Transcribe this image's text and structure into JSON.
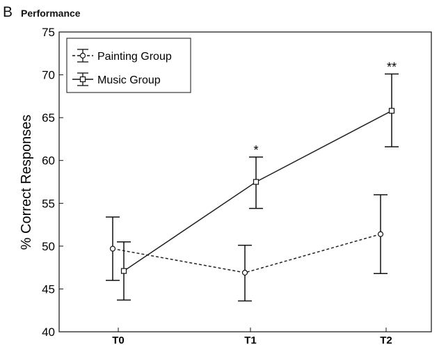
{
  "panel_letter": "B",
  "panel_title": "Performance",
  "chart_data": {
    "type": "line",
    "title": "",
    "xlabel": "",
    "ylabel": "% Correct Responses",
    "categories": [
      "T0",
      "T1",
      "T2"
    ],
    "ylim": [
      40,
      75
    ],
    "yticks": [
      40,
      45,
      50,
      55,
      60,
      65,
      70,
      75
    ],
    "grid": false,
    "legend_position": "top-left",
    "series": [
      {
        "name": "Painting Group",
        "line_style": "dashed",
        "marker": "circle",
        "color": "#222222",
        "values": [
          49.7,
          46.9,
          51.4
        ],
        "error_low": [
          46.0,
          43.6,
          46.8
        ],
        "error_high": [
          53.4,
          50.1,
          56.0
        ]
      },
      {
        "name": "Music Group",
        "line_style": "solid",
        "marker": "square",
        "color": "#222222",
        "values": [
          47.1,
          57.5,
          65.8
        ],
        "error_low": [
          43.7,
          54.4,
          61.6
        ],
        "error_high": [
          50.5,
          60.4,
          70.1
        ]
      }
    ],
    "annotations": [
      {
        "category": "T1",
        "series": "Music Group",
        "text": "*"
      },
      {
        "category": "T2",
        "series": "Music Group",
        "text": "**"
      }
    ]
  }
}
